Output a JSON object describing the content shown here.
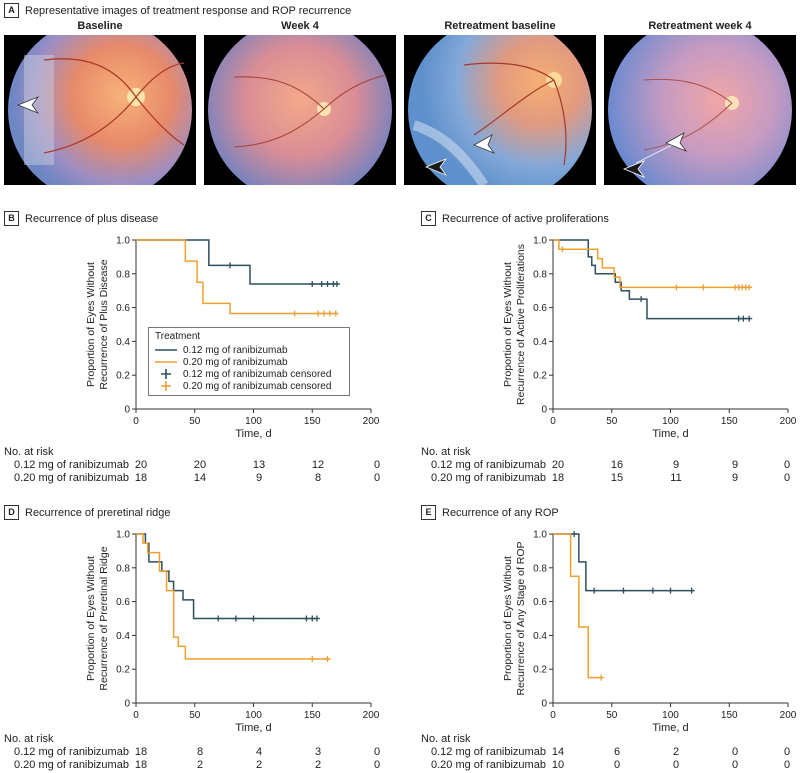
{
  "figure": {
    "panel_a": {
      "letter": "A",
      "title": "Representative images of treatment response and ROP recurrence",
      "images": [
        {
          "caption": "Baseline",
          "arrows": [
            "white"
          ]
        },
        {
          "caption": "Week 4",
          "arrows": []
        },
        {
          "caption": "Retreatment baseline",
          "arrows": [
            "white",
            "black"
          ]
        },
        {
          "caption": "Retreatment week 4",
          "arrows": [
            "white",
            "black"
          ]
        }
      ]
    },
    "legend": {
      "title": "Treatment",
      "items": [
        "0.12 mg of ranibizumab",
        "0.20 mg of ranibizumab",
        "0.12 mg of ranibizumab censored",
        "0.20 mg of ranibizumab censored"
      ]
    }
  },
  "colors": {
    "dose_012": "#2f4f5f",
    "dose_020": "#f0a030",
    "axis": "#333333"
  },
  "chart_data": [
    {
      "panel": "B",
      "title": "Recurrence of plus disease",
      "type": "line",
      "xlabel": "Time, d",
      "ylabel_lines": [
        "Proportion of Eyes Without",
        "Recurrence of Plus Disease"
      ],
      "xlim": [
        0,
        200
      ],
      "ylim": [
        0,
        1.0
      ],
      "x_ticks": [
        "0",
        "50",
        "100",
        "150",
        "200"
      ],
      "y_ticks": [
        "0",
        "0.2",
        "0.4",
        "0.6",
        "0.8",
        "1.0"
      ],
      "legend": "inside-bottom-left",
      "series": [
        {
          "name": "0.12 mg of ranibizumab",
          "steps": [
            [
              0,
              1.0
            ],
            [
              62,
              0.85
            ],
            [
              97,
              0.74
            ],
            [
              172,
              0.74
            ]
          ],
          "censored": [
            [
              80,
              0.85
            ],
            [
              150,
              0.74
            ],
            [
              158,
              0.74
            ],
            [
              163,
              0.74
            ],
            [
              168,
              0.74
            ],
            [
              171,
              0.74
            ]
          ]
        },
        {
          "name": "0.20 mg of ranibizumab",
          "steps": [
            [
              0,
              1.0
            ],
            [
              42,
              0.875
            ],
            [
              52,
              0.75
            ],
            [
              57,
              0.625
            ],
            [
              80,
              0.565
            ],
            [
              172,
              0.565
            ]
          ],
          "censored": [
            [
              135,
              0.565
            ],
            [
              155,
              0.565
            ],
            [
              160,
              0.565
            ],
            [
              165,
              0.565
            ],
            [
              170,
              0.565
            ]
          ]
        }
      ],
      "risk_table": {
        "header": "No. at risk",
        "rows": [
          {
            "label": "0.12 mg of ranibizumab",
            "values": [
              "20",
              "20",
              "13",
              "12",
              "0"
            ]
          },
          {
            "label": "0.20 mg of ranibizumab",
            "values": [
              "18",
              "14",
              "9",
              "8",
              "0"
            ]
          }
        ]
      }
    },
    {
      "panel": "C",
      "title": "Recurrence of active proliferations",
      "type": "line",
      "xlabel": "Time, d",
      "ylabel_lines": [
        "Proportion of Eyes Without",
        "Recurrence of Active Proliferations"
      ],
      "xlim": [
        0,
        200
      ],
      "ylim": [
        0,
        1.0
      ],
      "x_ticks": [
        "0",
        "50",
        "100",
        "150",
        "200"
      ],
      "y_ticks": [
        "0",
        "0.2",
        "0.4",
        "0.6",
        "0.8",
        "1.0"
      ],
      "series": [
        {
          "name": "0.12 mg of ranibizumab",
          "steps": [
            [
              0,
              1.0
            ],
            [
              30,
              0.9
            ],
            [
              33,
              0.85
            ],
            [
              36,
              0.8
            ],
            [
              53,
              0.75
            ],
            [
              58,
              0.7
            ],
            [
              65,
              0.65
            ],
            [
              80,
              0.535
            ],
            [
              168,
              0.535
            ]
          ],
          "censored": [
            [
              75,
              0.65
            ],
            [
              158,
              0.535
            ],
            [
              162,
              0.535
            ],
            [
              167,
              0.535
            ]
          ]
        },
        {
          "name": "0.20 mg of ranibizumab",
          "steps": [
            [
              0,
              1.0
            ],
            [
              5,
              0.945
            ],
            [
              38,
              0.89
            ],
            [
              42,
              0.835
            ],
            [
              52,
              0.78
            ],
            [
              57,
              0.72
            ],
            [
              168,
              0.72
            ]
          ],
          "censored": [
            [
              8,
              0.945
            ],
            [
              105,
              0.72
            ],
            [
              128,
              0.72
            ],
            [
              155,
              0.72
            ],
            [
              158,
              0.72
            ],
            [
              161,
              0.72
            ],
            [
              164,
              0.72
            ],
            [
              167,
              0.72
            ]
          ]
        }
      ],
      "risk_table": {
        "header": "No. at risk",
        "rows": [
          {
            "label": "0.12 mg of ranibizumab",
            "values": [
              "20",
              "16",
              "9",
              "9",
              "0"
            ]
          },
          {
            "label": "0.20 mg of ranibizumab",
            "values": [
              "18",
              "15",
              "11",
              "9",
              "0"
            ]
          }
        ]
      }
    },
    {
      "panel": "D",
      "title": "Recurrence of preretinal ridge",
      "type": "line",
      "xlabel": "Time, d",
      "ylabel_lines": [
        "Proportion of Eyes Without",
        "Recurrence of Preretinal Ridge"
      ],
      "xlim": [
        0,
        200
      ],
      "ylim": [
        0,
        1.0
      ],
      "x_ticks": [
        "0",
        "50",
        "100",
        "150",
        "200"
      ],
      "y_ticks": [
        "0",
        "0.2",
        "0.4",
        "0.6",
        "0.8",
        "1.0"
      ],
      "series": [
        {
          "name": "0.12 mg of ranibizumab",
          "steps": [
            [
              0,
              1.0
            ],
            [
              8,
              0.945
            ],
            [
              11,
              0.835
            ],
            [
              22,
              0.78
            ],
            [
              28,
              0.72
            ],
            [
              32,
              0.665
            ],
            [
              40,
              0.61
            ],
            [
              49,
              0.5
            ],
            [
              155,
              0.5
            ]
          ],
          "censored": [
            [
              70,
              0.5
            ],
            [
              85,
              0.5
            ],
            [
              100,
              0.5
            ],
            [
              145,
              0.5
            ],
            [
              150,
              0.5
            ],
            [
              154,
              0.5
            ]
          ]
        },
        {
          "name": "0.20 mg of ranibizumab",
          "steps": [
            [
              0,
              1.0
            ],
            [
              6,
              0.945
            ],
            [
              10,
              0.89
            ],
            [
              20,
              0.78
            ],
            [
              26,
              0.665
            ],
            [
              30,
              0.665
            ],
            [
              32,
              0.39
            ],
            [
              36,
              0.335
            ],
            [
              42,
              0.26
            ],
            [
              165,
              0.26
            ]
          ],
          "censored": [
            [
              150,
              0.26
            ],
            [
              163,
              0.26
            ]
          ]
        }
      ],
      "risk_table": {
        "header": "No. at risk",
        "rows": [
          {
            "label": "0.12 mg of ranibizumab",
            "values": [
              "18",
              "8",
              "4",
              "3",
              "0"
            ]
          },
          {
            "label": "0.20 mg of ranibizumab",
            "values": [
              "18",
              "2",
              "2",
              "2",
              "0"
            ]
          }
        ]
      }
    },
    {
      "panel": "E",
      "title": "Recurrence of any ROP",
      "type": "line",
      "xlabel": "Time, d",
      "ylabel_lines": [
        "Proportion of Eyes Without",
        "Recurrence of Any Stage of ROP"
      ],
      "xlim": [
        0,
        200
      ],
      "ylim": [
        0,
        1.0
      ],
      "x_ticks": [
        "0",
        "50",
        "100",
        "150",
        "200"
      ],
      "y_ticks": [
        "0",
        "0.2",
        "0.4",
        "0.6",
        "0.8",
        "1.0"
      ],
      "series": [
        {
          "name": "0.12 mg of ranibizumab",
          "steps": [
            [
              0,
              1.0
            ],
            [
              22,
              0.835
            ],
            [
              28,
              0.665
            ],
            [
              120,
              0.665
            ]
          ],
          "censored": [
            [
              18,
              1.0
            ],
            [
              35,
              0.665
            ],
            [
              60,
              0.665
            ],
            [
              85,
              0.665
            ],
            [
              100,
              0.665
            ],
            [
              118,
              0.665
            ]
          ]
        },
        {
          "name": "0.20 mg of ranibizumab",
          "steps": [
            [
              0,
              1.0
            ],
            [
              15,
              0.75
            ],
            [
              22,
              0.45
            ],
            [
              30,
              0.15
            ],
            [
              42,
              0.15
            ]
          ],
          "censored": [
            [
              41,
              0.15
            ]
          ]
        }
      ],
      "risk_table": {
        "header": "No. at risk",
        "rows": [
          {
            "label": "0.12 mg of ranibizumab",
            "values": [
              "14",
              "6",
              "2",
              "0",
              "0"
            ]
          },
          {
            "label": "0.20 mg of ranibizumab",
            "values": [
              "10",
              "0",
              "0",
              "0",
              "0"
            ]
          }
        ]
      }
    }
  ]
}
